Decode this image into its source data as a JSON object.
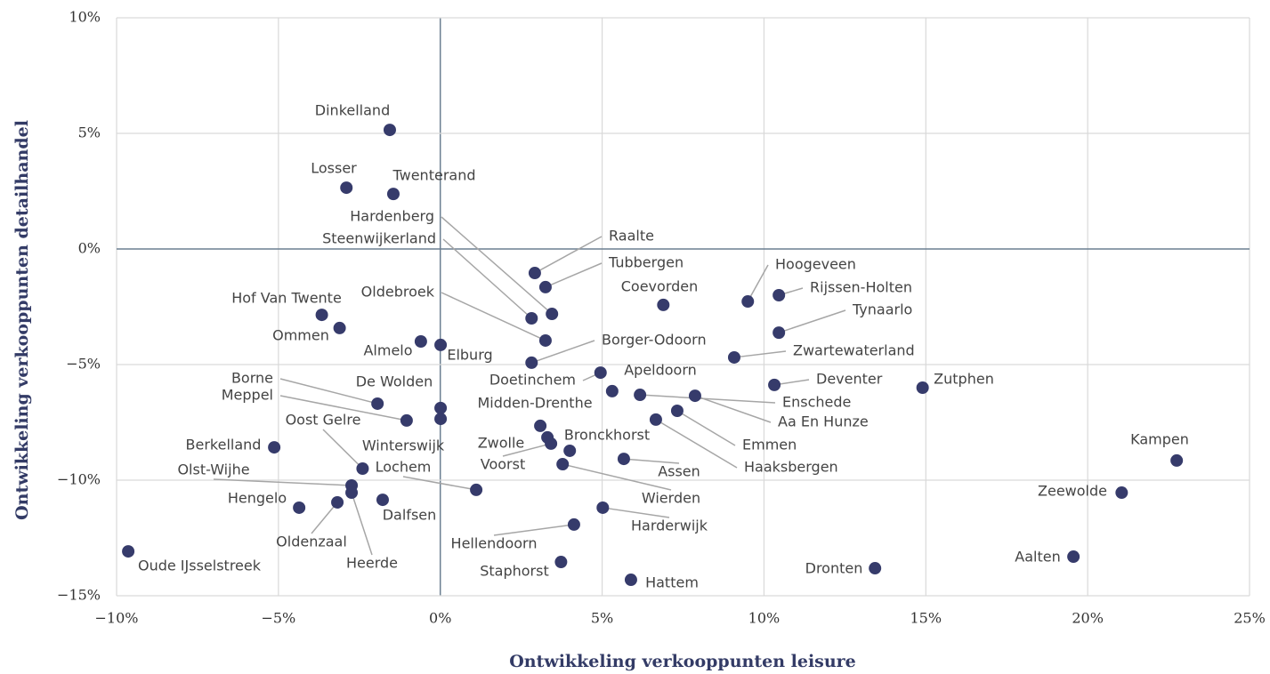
{
  "chart_data": {
    "type": "scatter",
    "x_label": "Ontwikkeling verkooppunten  leisure",
    "y_label": "Ontwikkeling verkooppunten detailhandel",
    "color": "#363b6b",
    "grid": true,
    "xlim": [
      -10,
      25
    ],
    "ylim": [
      -15,
      10
    ],
    "xticks": [
      {
        "value": -10,
        "label": "−10%"
      },
      {
        "value": -5,
        "label": "−5%"
      },
      {
        "value": 0,
        "label": "0%"
      },
      {
        "value": 5,
        "label": "5%"
      },
      {
        "value": 10,
        "label": "10%"
      },
      {
        "value": 15,
        "label": "15%"
      },
      {
        "value": 20,
        "label": "20%"
      },
      {
        "value": 25,
        "label": "25%"
      }
    ],
    "yticks": [
      {
        "value": -15,
        "label": "−15%"
      },
      {
        "value": -10,
        "label": "−10%"
      },
      {
        "value": -5,
        "label": "−5%"
      },
      {
        "value": 0,
        "label": "0%"
      },
      {
        "value": 5,
        "label": "5%"
      },
      {
        "value": 10,
        "label": "10%"
      }
    ],
    "labels": [
      "Dinkelland",
      "Losser",
      "Twenterand",
      "Hardenberg",
      "Steenwijkerland",
      "Raalte",
      "Tubbergen",
      "Coevorden",
      "Hoogeveen",
      "Rijssen-Holten",
      "Tynaarlo",
      "Hof Van Twente",
      "Ommen",
      "Oldebroek",
      "Almelo",
      "Elburg",
      "Borger-Odoorn",
      "Zwartewaterland",
      "Doetinchem",
      "Apeldoorn",
      "Deventer",
      "Zutphen",
      "Enschede",
      "Aa En Hunze",
      "Borne",
      "De Wolden",
      "Meppel",
      "Oost Gelre",
      "Winterswijk",
      "Emmen",
      "Haaksbergen",
      "Midden-Drenthe",
      "Zwolle",
      "Bronckhorst",
      "Voorst",
      "Assen",
      "Lochem",
      "Wierden",
      "Harderwijk",
      "Hellendoorn",
      "Staphorst",
      "Hattem",
      "Dronten",
      "Aalten",
      "Zeewolde",
      "Kampen",
      "Berkelland",
      "Olst-Wijhe",
      "Hengelo",
      "Oldenzaal",
      "Heerde",
      "Dalfsen",
      "Oude IJsselstreek"
    ],
    "x": [
      -1.56,
      -2.9,
      -1.45,
      3.45,
      2.82,
      2.92,
      3.25,
      6.89,
      9.5,
      10.46,
      10.46,
      -3.66,
      -3.11,
      3.25,
      -0.6,
      0.01,
      2.82,
      9.08,
      4.95,
      5.31,
      10.32,
      14.9,
      6.17,
      7.87,
      -1.94,
      0.01,
      -1.04,
      -2.4,
      0.01,
      7.32,
      6.66,
      3.09,
      3.31,
      4.0,
      3.42,
      5.67,
      1.11,
      3.78,
      5.02,
      4.13,
      3.73,
      5.89,
      13.43,
      19.56,
      21.05,
      22.75,
      -5.13,
      -2.74,
      -4.36,
      -3.18,
      -2.74,
      -1.78,
      -9.64
    ],
    "values": [
      5.15,
      2.65,
      2.38,
      -2.81,
      -3.0,
      -1.04,
      -1.65,
      -2.42,
      -2.27,
      -2.0,
      -3.62,
      -2.85,
      -3.42,
      -3.96,
      -4.0,
      -4.15,
      -4.92,
      -4.69,
      -5.35,
      -6.15,
      -5.88,
      -6.0,
      -6.31,
      -6.35,
      -6.69,
      -6.88,
      -7.42,
      -9.5,
      -7.35,
      -7.0,
      -7.38,
      -7.65,
      -8.15,
      -8.73,
      -8.42,
      -9.08,
      -10.42,
      -9.31,
      -11.19,
      -11.92,
      -13.54,
      -14.31,
      -13.81,
      -13.31,
      -10.54,
      -9.15,
      -8.58,
      -10.23,
      -11.19,
      -10.96,
      -10.54,
      -10.85,
      -13.08
    ]
  }
}
